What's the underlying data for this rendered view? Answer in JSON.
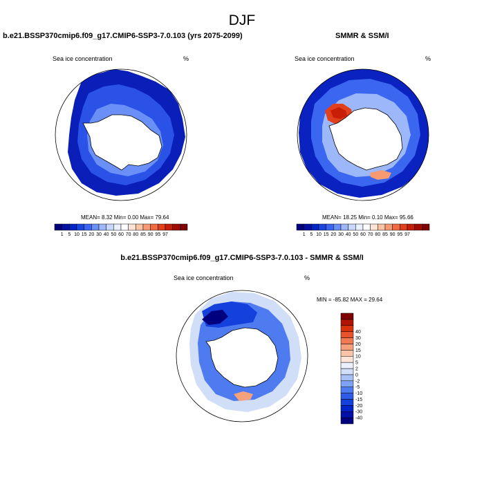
{
  "figure": {
    "title": "DJF"
  },
  "panels": [
    {
      "title": "b.e21.BSSP370cmip6.f09_g17.CMIP6-SSP3-7.0.103 (yrs 2075-2099)",
      "variable": "Sea ice concentration",
      "units": "%",
      "stats": "MEAN=   8.32  Min=   0.00  Max=  79.64"
    },
    {
      "title": "SMMR & SSM/I",
      "variable": "Sea ice concentration",
      "units": "%",
      "stats": "MEAN=  18.25  Min=   0.10  Max=  95.66"
    },
    {
      "title": "b.e21.BSSP370cmip6.f09_g17.CMIP6-SSP3-7.0.103 - SMMR & SSM/I",
      "variable": "Sea ice concentration",
      "units": "%",
      "stats": "MIN = -85.82 MAX =  29.64"
    }
  ],
  "colors": {
    "concentration_scale": [
      "#00007f",
      "#0010a0",
      "#0026c8",
      "#1a46e0",
      "#3a66f0",
      "#6a90f7",
      "#9cb7fa",
      "#c8d8fc",
      "#ebf0fe",
      "#ffffff",
      "#fde3d4",
      "#fbc3a6",
      "#f79a72",
      "#f06a42",
      "#e2401c",
      "#c81e08",
      "#a00c00",
      "#7f0000"
    ],
    "difference_scale": [
      "#00007f",
      "#0010a8",
      "#0024c8",
      "#1440dc",
      "#2e5ce8",
      "#4e7cf0",
      "#7ea2f6",
      "#a8c2f9",
      "#d0def8",
      "#eaf1fd",
      "#fde4d6",
      "#fbc4a8",
      "#f7a17c",
      "#f27a52",
      "#e8522c",
      "#d8320c",
      "#b01400",
      "#7f0000"
    ]
  },
  "chart_data": [
    {
      "type": "heatmap",
      "title": "b.e21.BSSP370cmip6.f09_g17.CMIP6-SSP3-7.0.103 (yrs 2075-2099)",
      "subtitle": "Sea ice concentration",
      "units": "%",
      "colorbar_levels": [
        1,
        5,
        10,
        15,
        20,
        30,
        40,
        50,
        60,
        70,
        80,
        85,
        90,
        95,
        97
      ],
      "mean": 8.32,
      "min": 0.0,
      "max": 79.64
    },
    {
      "type": "heatmap",
      "title": "SMMR & SSM/I",
      "subtitle": "Sea ice concentration",
      "units": "%",
      "colorbar_levels": [
        1,
        5,
        10,
        15,
        20,
        30,
        40,
        50,
        60,
        70,
        80,
        85,
        90,
        95,
        97
      ],
      "mean": 18.25,
      "min": 0.1,
      "max": 95.66
    },
    {
      "type": "heatmap",
      "title": "b.e21.BSSP370cmip6.f09_g17.CMIP6-SSP3-7.0.103 - SMMR & SSM/I",
      "subtitle": "Sea ice concentration",
      "units": "%",
      "colorbar_levels": [
        -40,
        -30,
        -20,
        -15,
        -10,
        -5,
        -2,
        0,
        2,
        5,
        10,
        15,
        20,
        30,
        40
      ],
      "min": -85.82,
      "max": 29.64
    }
  ]
}
